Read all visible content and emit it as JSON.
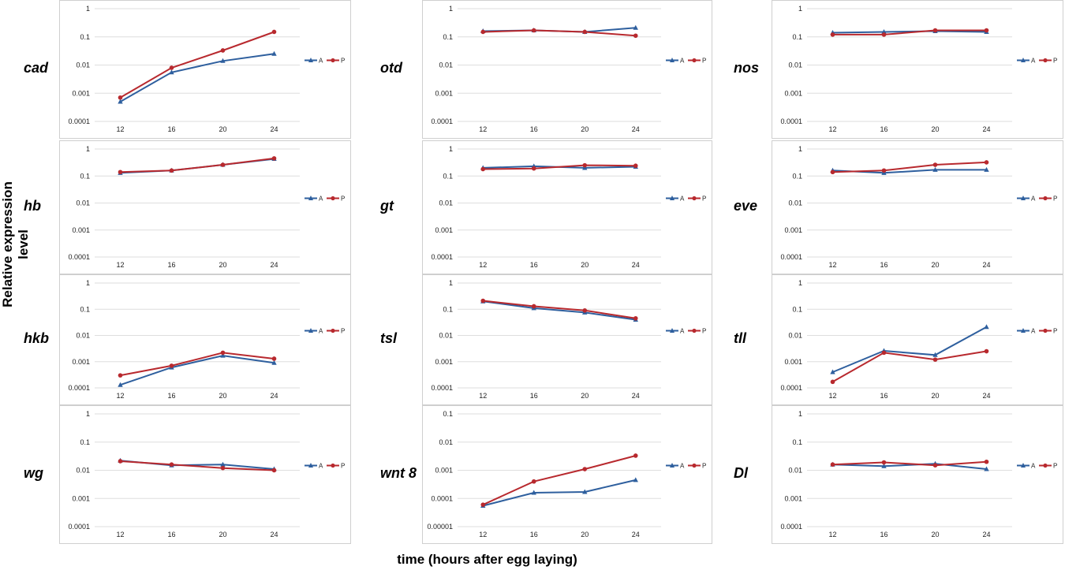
{
  "y_axis_label": "Relative expression level",
  "x_axis_label": "time (hours after egg laying)",
  "colors": {
    "A": "#2e5f9e",
    "P": "#b8292e"
  },
  "chart_data": [
    {
      "type": "line",
      "gene": "cad",
      "x": [
        12,
        16,
        20,
        24
      ],
      "ylim": [
        0.0001,
        1
      ],
      "yscale": "log",
      "yticks": [
        "1",
        "0.1",
        "0.01",
        "0.001",
        "0.0001"
      ],
      "series": [
        {
          "name": "A",
          "values": [
            0.0005,
            0.0055,
            0.014,
            0.025
          ]
        },
        {
          "name": "P",
          "values": [
            0.0007,
            0.008,
            0.033,
            0.15
          ]
        }
      ]
    },
    {
      "type": "line",
      "gene": "otd",
      "x": [
        12,
        16,
        20,
        24
      ],
      "ylim": [
        0.0001,
        1
      ],
      "yscale": "log",
      "yticks": [
        "1",
        "0.1",
        "0.01",
        "0.001",
        "0.0001"
      ],
      "series": [
        {
          "name": "A",
          "values": [
            0.16,
            0.17,
            0.15,
            0.21
          ]
        },
        {
          "name": "P",
          "values": [
            0.15,
            0.17,
            0.15,
            0.11
          ]
        }
      ]
    },
    {
      "type": "line",
      "gene": "nos",
      "x": [
        12,
        16,
        20,
        24
      ],
      "ylim": [
        0.0001,
        1
      ],
      "yscale": "log",
      "yticks": [
        "1",
        "0.1",
        "0.01",
        "0.001",
        "0.0001"
      ],
      "series": [
        {
          "name": "A",
          "values": [
            0.14,
            0.15,
            0.16,
            0.15
          ]
        },
        {
          "name": "P",
          "values": [
            0.12,
            0.12,
            0.17,
            0.17
          ]
        }
      ]
    },
    {
      "type": "line",
      "gene": "hb",
      "x": [
        12,
        16,
        20,
        24
      ],
      "ylim": [
        0.0001,
        1
      ],
      "yscale": "log",
      "yticks": [
        "1",
        "0.1",
        "0.01",
        "0.001",
        "0.0001"
      ],
      "series": [
        {
          "name": "A",
          "values": [
            0.13,
            0.16,
            0.26,
            0.43
          ]
        },
        {
          "name": "P",
          "values": [
            0.14,
            0.16,
            0.26,
            0.45
          ]
        }
      ]
    },
    {
      "type": "line",
      "gene": "gt",
      "x": [
        12,
        16,
        20,
        24
      ],
      "ylim": [
        0.0001,
        1
      ],
      "yscale": "log",
      "yticks": [
        "1",
        "0.1",
        "0.01",
        "0.001",
        "0.0001"
      ],
      "series": [
        {
          "name": "A",
          "values": [
            0.2,
            0.23,
            0.2,
            0.22
          ]
        },
        {
          "name": "P",
          "values": [
            0.18,
            0.19,
            0.25,
            0.24
          ]
        }
      ]
    },
    {
      "type": "line",
      "gene": "eve",
      "x": [
        12,
        16,
        20,
        24
      ],
      "ylim": [
        0.0001,
        1
      ],
      "yscale": "log",
      "yticks": [
        "1",
        "0.1",
        "0.01",
        "0.001",
        "0.0001"
      ],
      "series": [
        {
          "name": "A",
          "values": [
            0.16,
            0.13,
            0.17,
            0.17
          ]
        },
        {
          "name": "P",
          "values": [
            0.14,
            0.16,
            0.26,
            0.32
          ]
        }
      ]
    },
    {
      "type": "line",
      "gene": "hkb",
      "x": [
        12,
        16,
        20,
        24
      ],
      "ylim": [
        0.0001,
        1
      ],
      "yscale": "log",
      "yticks": [
        "1",
        "0.1",
        "0.01",
        "0.001",
        "0.0001"
      ],
      "series": [
        {
          "name": "A",
          "values": [
            0.00013,
            0.0006,
            0.0017,
            0.0009
          ]
        },
        {
          "name": "P",
          "values": [
            0.0003,
            0.0007,
            0.0022,
            0.0013
          ]
        }
      ]
    },
    {
      "type": "line",
      "gene": "tsl",
      "x": [
        12,
        16,
        20,
        24
      ],
      "ylim": [
        0.0001,
        1
      ],
      "yscale": "log",
      "yticks": [
        "1",
        "0.1",
        "0.01",
        "0.001",
        "0.0001"
      ],
      "series": [
        {
          "name": "A",
          "values": [
            0.2,
            0.11,
            0.075,
            0.04
          ]
        },
        {
          "name": "P",
          "values": [
            0.21,
            0.13,
            0.09,
            0.045
          ]
        }
      ]
    },
    {
      "type": "line",
      "gene": "tll",
      "x": [
        12,
        16,
        20,
        24
      ],
      "ylim": [
        0.0001,
        1
      ],
      "yscale": "log",
      "yticks": [
        "1",
        "0.1",
        "0.01",
        "0.001",
        "0.0001"
      ],
      "series": [
        {
          "name": "A",
          "values": [
            0.0004,
            0.0026,
            0.0018,
            0.021
          ]
        },
        {
          "name": "P",
          "values": [
            0.00017,
            0.0022,
            0.0012,
            0.0025
          ]
        }
      ]
    },
    {
      "type": "line",
      "gene": "wg",
      "x": [
        12,
        16,
        20,
        24
      ],
      "ylim": [
        0.0001,
        1
      ],
      "yscale": "log",
      "yticks": [
        "1",
        "0.1",
        "0.01",
        "0.001",
        "0.0001"
      ],
      "series": [
        {
          "name": "A",
          "values": [
            0.022,
            0.015,
            0.016,
            0.011
          ]
        },
        {
          "name": "P",
          "values": [
            0.021,
            0.016,
            0.012,
            0.01
          ]
        }
      ]
    },
    {
      "type": "line",
      "gene": "wnt 8",
      "x": [
        12,
        16,
        20,
        24
      ],
      "ylim": [
        1e-05,
        0.1
      ],
      "yscale": "log",
      "yticks": [
        "0.1",
        "0.01",
        "0.001",
        "0.0001",
        "0.00001"
      ],
      "series": [
        {
          "name": "A",
          "values": [
            5.5e-05,
            0.00016,
            0.00017,
            0.00045
          ]
        },
        {
          "name": "P",
          "values": [
            6e-05,
            0.0004,
            0.0011,
            0.0033
          ]
        }
      ]
    },
    {
      "type": "line",
      "gene": "Dl",
      "x": [
        12,
        16,
        20,
        24
      ],
      "ylim": [
        0.0001,
        1
      ],
      "yscale": "log",
      "yticks": [
        "1",
        "0.1",
        "0.01",
        "0.001",
        "0.0001"
      ],
      "series": [
        {
          "name": "A",
          "values": [
            0.016,
            0.014,
            0.017,
            0.011
          ]
        },
        {
          "name": "P",
          "values": [
            0.016,
            0.019,
            0.015,
            0.02
          ]
        }
      ]
    }
  ]
}
